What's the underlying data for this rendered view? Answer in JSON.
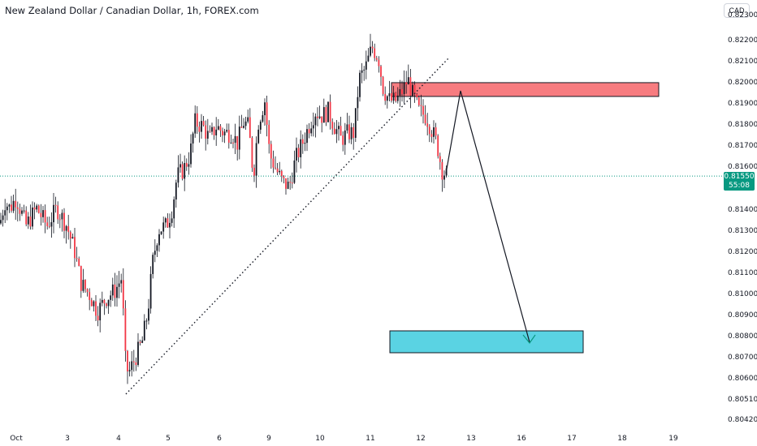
{
  "header": {
    "title": "New Zealand Dollar / Canadian Dollar, 1h, FOREX.com",
    "currency": "CAD"
  },
  "price_tag": {
    "price": "0.81550",
    "countdown": "55:08"
  },
  "colors": {
    "up": "#089981",
    "down": "#f23645",
    "candle": "#131722",
    "resistance_zone": "#f77c80",
    "target_zone": "#5ad3e3",
    "current_price_line": "#089981"
  },
  "chart_data": {
    "type": "candlestick",
    "title": "New Zealand Dollar / Canadian Dollar, 1h, FOREX.com",
    "y_axis": {
      "ticks": [
        "0.82300",
        "0.82200",
        "0.82100",
        "0.82000",
        "0.81900",
        "0.81800",
        "0.81700",
        "0.81600",
        "0.81400",
        "0.81300",
        "0.81200",
        "0.81100",
        "0.81000",
        "0.80900",
        "0.80800",
        "0.80700",
        "0.80600",
        "0.80510",
        "0.80420"
      ],
      "ylim": [
        0.8042,
        0.8233
      ]
    },
    "x_axis": {
      "ticks": [
        "Oct",
        "3",
        "4",
        "5",
        "6",
        "9",
        "10",
        "11",
        "12",
        "13",
        "16",
        "17",
        "18",
        "19"
      ]
    },
    "current_price": 0.8155,
    "price_path": [
      [
        0,
        0.8133
      ],
      [
        6,
        0.8143
      ],
      [
        12,
        0.814
      ],
      [
        20,
        0.8145
      ],
      [
        32,
        0.8132
      ],
      [
        45,
        0.814
      ],
      [
        58,
        0.8132
      ],
      [
        70,
        0.814
      ],
      [
        82,
        0.8132
      ],
      [
        92,
        0.812
      ],
      [
        100,
        0.8105
      ],
      [
        110,
        0.81
      ],
      [
        120,
        0.8092
      ],
      [
        130,
        0.8098
      ],
      [
        142,
        0.8102
      ],
      [
        150,
        0.8108
      ],
      [
        154,
        0.807
      ],
      [
        158,
        0.8063
      ],
      [
        166,
        0.807
      ],
      [
        175,
        0.8078
      ],
      [
        182,
        0.8092
      ],
      [
        188,
        0.8115
      ],
      [
        195,
        0.813
      ],
      [
        205,
        0.8132
      ],
      [
        212,
        0.814
      ],
      [
        218,
        0.8155
      ],
      [
        226,
        0.8158
      ],
      [
        234,
        0.8165
      ],
      [
        240,
        0.818
      ],
      [
        250,
        0.8178
      ],
      [
        258,
        0.8172
      ],
      [
        266,
        0.8178
      ],
      [
        276,
        0.8175
      ],
      [
        286,
        0.8175
      ],
      [
        292,
        0.817
      ],
      [
        300,
        0.818
      ],
      [
        306,
        0.8178
      ],
      [
        312,
        0.8155
      ],
      [
        318,
        0.818
      ],
      [
        326,
        0.819
      ],
      [
        332,
        0.8165
      ],
      [
        340,
        0.8158
      ],
      [
        348,
        0.8152
      ],
      [
        356,
        0.815
      ],
      [
        364,
        0.8163
      ],
      [
        372,
        0.817
      ],
      [
        380,
        0.8178
      ],
      [
        388,
        0.8185
      ],
      [
        396,
        0.8183
      ],
      [
        404,
        0.8185
      ],
      [
        412,
        0.8178
      ],
      [
        420,
        0.8172
      ],
      [
        428,
        0.8175
      ],
      [
        436,
        0.8175
      ],
      [
        442,
        0.82
      ],
      [
        450,
        0.8205
      ],
      [
        458,
        0.8215
      ],
      [
        466,
        0.821
      ],
      [
        472,
        0.8195
      ],
      [
        480,
        0.819
      ],
      [
        488,
        0.819
      ],
      [
        496,
        0.8195
      ],
      [
        502,
        0.82
      ],
      [
        508,
        0.8193
      ],
      [
        516,
        0.8185
      ],
      [
        524,
        0.8183
      ],
      [
        530,
        0.8178
      ],
      [
        538,
        0.817
      ],
      [
        544,
        0.8158
      ],
      [
        550,
        0.8155
      ]
    ],
    "annotations": {
      "trendline": {
        "style": "dotted",
        "from": [
          "4",
          0.8053
        ],
        "to": [
          "12",
          0.821
        ]
      },
      "resistance_zone": {
        "from": "11",
        "to": "18",
        "top": 0.8198,
        "bottom": 0.8192
      },
      "target_zone": {
        "from": "11",
        "to": "17",
        "top": 0.8083,
        "bottom": 0.8073
      },
      "projection": [
        [
          0.8155
        ],
        [
          0.8195
        ],
        [
          0.8077
        ]
      ]
    }
  }
}
